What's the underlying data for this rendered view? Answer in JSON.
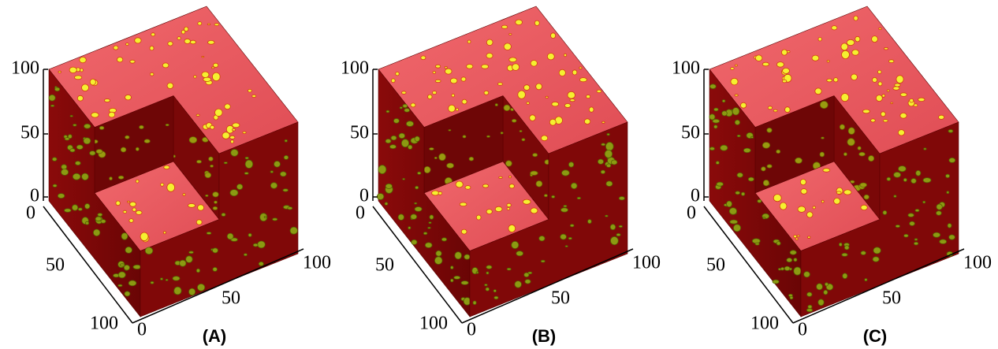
{
  "panels": [
    {
      "label": "(A)",
      "vertical_ticks": [
        100,
        50,
        0
      ],
      "depth_ticks": [
        0,
        50,
        100
      ],
      "width_ticks": [
        0,
        50,
        100
      ]
    },
    {
      "label": "(B)",
      "vertical_ticks": [
        100,
        50,
        0
      ],
      "depth_ticks": [
        0,
        50,
        100
      ],
      "width_ticks": [
        0,
        50,
        100
      ]
    },
    {
      "label": "(C)",
      "vertical_ticks": [
        100,
        50,
        0
      ],
      "depth_ticks": [
        0,
        50,
        100
      ],
      "width_ticks": [
        0,
        50,
        100
      ]
    }
  ]
}
